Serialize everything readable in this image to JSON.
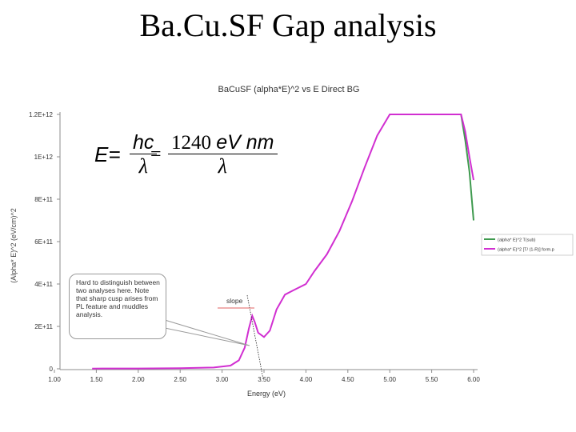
{
  "slide": {
    "title": "Ba.Cu.SF Gap analysis"
  },
  "formula": {
    "lhs": "E=",
    "frac1_num": "hc",
    "frac1_den": "λ",
    "eq": "=",
    "frac2_num_a": "1240 ",
    "frac2_num_b": "eV nm",
    "frac2_den": "λ"
  },
  "callout": {
    "text": "Hard to distinguish between two analyses here.  Note that sharp cusp arises from PL feature and muddles analysis."
  },
  "annotation": {
    "slope_label": "slope"
  },
  "colors": {
    "series_transmission": "#3f9a4f",
    "series_corrected": "#d12fd1",
    "slope_line": "#e06060",
    "axis": "#8c8c8c"
  },
  "chart_data": {
    "type": "line",
    "title": "BaCuSF (alpha*E)^2 vs E Direct BG",
    "xlabel": "Energy (eV)",
    "ylabel": "(Alpha* E)^2 (eV/cm)^2",
    "xlim": [
      1.0,
      6.0
    ],
    "ylim": [
      0,
      1200000000000.0
    ],
    "x_ticks": [
      "1.00",
      "1.50",
      "2.00",
      "2.50",
      "3.00",
      "3.50",
      "4.00",
      "4.50",
      "5.00",
      "5.50",
      "6.00"
    ],
    "y_ticks": [
      "0",
      "2E+11",
      "4E+11",
      "6E+11",
      "8E+11",
      "1E+12",
      "1.2E+12"
    ],
    "legend_position": "right",
    "grid": false,
    "series": [
      {
        "name": "(alpha* E)^2 T(sub)",
        "x": [
          5.85,
          5.9,
          5.95,
          6.0
        ],
        "y": [
          1200000000000.0,
          1080000000000.0,
          930000000000.0,
          700000000000.0
        ]
      },
      {
        "name": "(alpha* E)^2   [T/ (1-R)] form.p",
        "x": [
          1.45,
          2.0,
          2.5,
          2.9,
          3.1,
          3.2,
          3.27,
          3.32,
          3.36,
          3.39,
          3.43,
          3.5,
          3.57,
          3.65,
          3.75,
          3.85,
          4.0,
          4.1,
          4.25,
          4.4,
          4.55,
          4.7,
          4.85,
          5.0,
          5.25,
          5.5,
          5.75,
          5.85,
          5.9,
          5.95,
          6.0
        ],
        "y": [
          1000000000.0,
          1500000000.0,
          3000000000.0,
          6000000000.0,
          15000000000.0,
          40000000000.0,
          100000000000.0,
          190000000000.0,
          250000000000.0,
          220000000000.0,
          170000000000.0,
          150000000000.0,
          180000000000.0,
          280000000000.0,
          350000000000.0,
          370000000000.0,
          400000000000.0,
          460000000000.0,
          540000000000.0,
          650000000000.0,
          790000000000.0,
          950000000000.0,
          1100000000000.0,
          1200000000000.0,
          1200000000000.0,
          1200000000000.0,
          1200000000000.0,
          1200000000000.0,
          1120000000000.0,
          1000000000000.0,
          890000000000.0
        ]
      }
    ]
  }
}
